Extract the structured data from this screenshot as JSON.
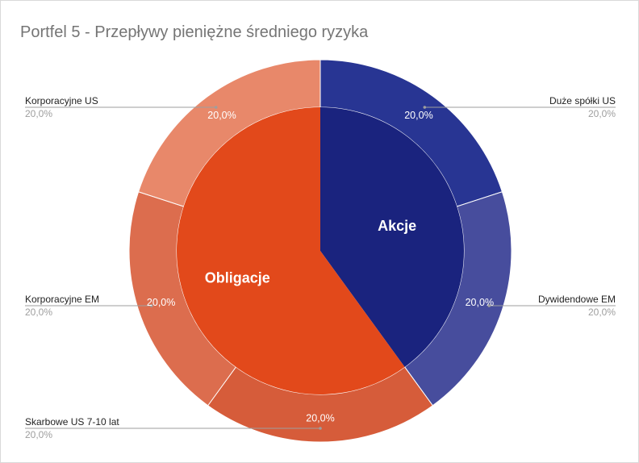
{
  "chart_data": {
    "type": "pie",
    "subtype": "sunburst",
    "title": "Portfel 5 - Przepływy pieniężne średniego ryzyka",
    "center": {
      "categories": [
        "Akcje",
        "Obligacje"
      ],
      "values": [
        40,
        60
      ],
      "colors": [
        "#1a237e",
        "#e2491b"
      ]
    },
    "outer": {
      "slices": [
        {
          "name": "Duże spółki US",
          "value": 20,
          "label": "20,0%",
          "parent": "Akcje",
          "color": "#283593"
        },
        {
          "name": "Dywidendowe EM",
          "value": 20,
          "label": "20,0%",
          "parent": "Akcje",
          "color": "#474d9d"
        },
        {
          "name": "Skarbowe US 7-10 lat",
          "value": 20,
          "label": "20,0%",
          "parent": "Obligacje",
          "color": "#d65c3a"
        },
        {
          "name": "Korporacyjne EM",
          "value": 20,
          "label": "20,0%",
          "parent": "Obligacje",
          "color": "#dc6d4e"
        },
        {
          "name": "Korporacyjne US",
          "value": 20,
          "label": "20,0%",
          "parent": "Obligacje",
          "color": "#e8886a"
        }
      ]
    },
    "legend": "none",
    "external_labels": true
  }
}
